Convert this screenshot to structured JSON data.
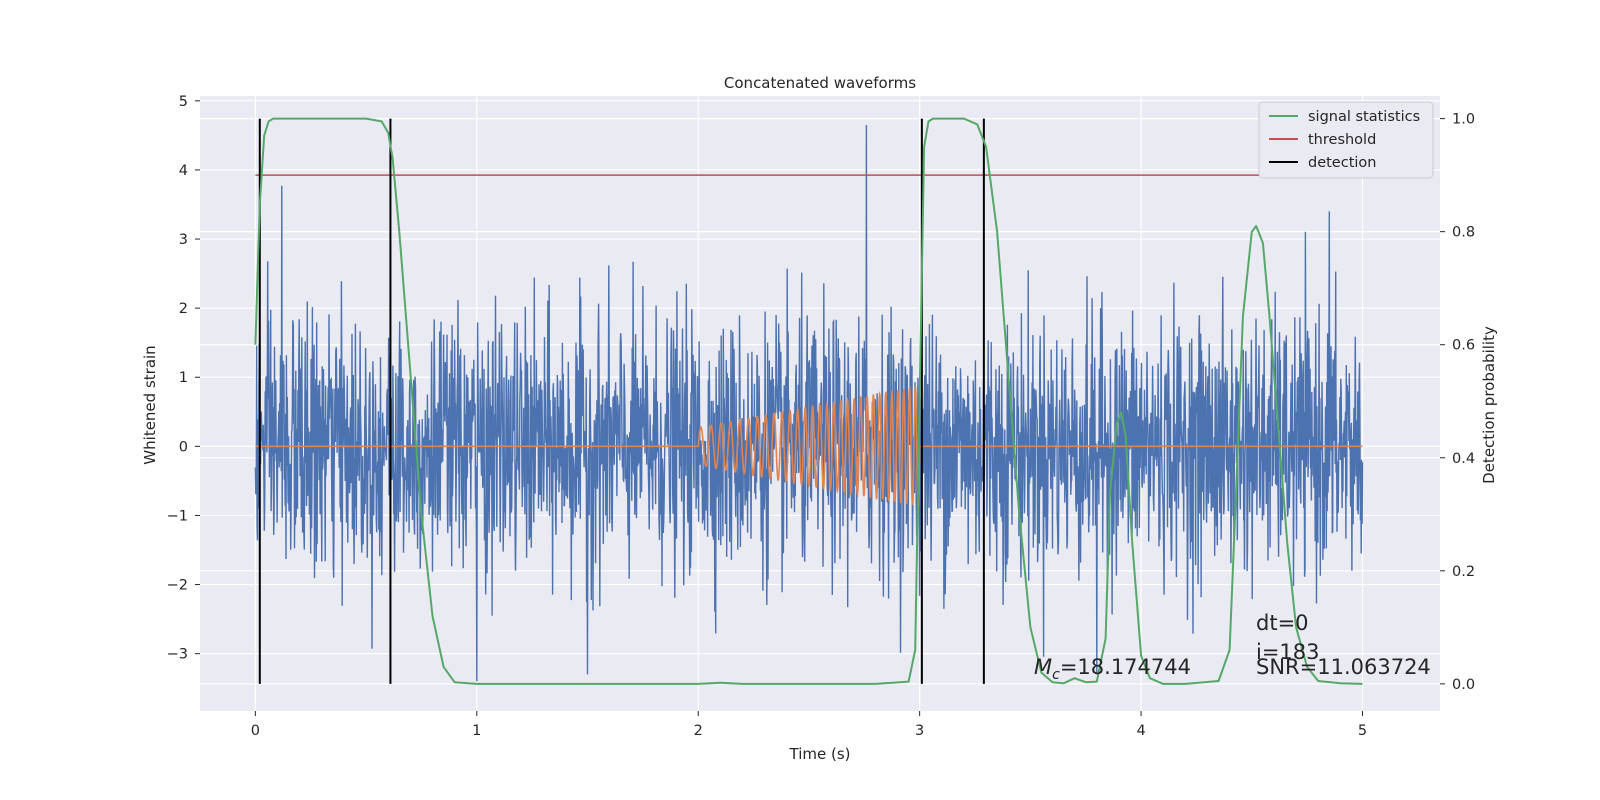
{
  "chart_data": {
    "type": "line",
    "title": "Concatenated waveforms",
    "xlabel": "Time (s)",
    "ylabel": "Whitened strain",
    "y2label": "Detection probability",
    "xlim": [
      -0.25,
      5.35
    ],
    "ylim": [
      -3.83,
      5.07
    ],
    "y2lim": [
      -0.048,
      1.04
    ],
    "xticks": [
      0,
      1,
      2,
      3,
      4,
      5
    ],
    "yticks": [
      -3,
      -2,
      -1,
      0,
      1,
      2,
      3,
      4,
      5
    ],
    "y2ticks": [
      0.0,
      0.2,
      0.4,
      0.6,
      0.8,
      1.0
    ],
    "ytick_labels": [
      "−3",
      "−2",
      "−1",
      "0",
      "1",
      "2",
      "3",
      "4",
      "5"
    ],
    "y2tick_labels": [
      "0.0",
      "0.2",
      "0.4",
      "0.6",
      "0.8",
      "1.0"
    ],
    "grid": true,
    "legend_position": "top-right",
    "legend": [
      {
        "label": "signal statistics",
        "color": "#55a868"
      },
      {
        "label": "threshold",
        "color": "#c44e52"
      },
      {
        "label": "detection",
        "color": "#000000"
      }
    ],
    "colors": {
      "strain": "#4c72b0",
      "template": "#dd8452",
      "signal_statistics": "#55a868",
      "threshold": "#c44e52",
      "detection": "#000000",
      "axes_bg": "#eaeaf2",
      "grid": "#ffffff"
    },
    "strain": {
      "t_range": [
        0,
        5
      ],
      "noise_amplitude": 2.3,
      "peaks": [
        [
          0.12,
          3.77
        ],
        [
          2.76,
          4.65
        ],
        [
          4.85,
          3.4
        ],
        [
          1.0,
          -3.4
        ],
        [
          1.5,
          -3.3
        ],
        [
          3.8,
          -3.3
        ]
      ]
    },
    "template": {
      "t_start": 2.0,
      "t_end": 3.0,
      "amp_start": 0.27,
      "amp_end": 0.87,
      "cycles": 30
    },
    "signal_statistics": {
      "t": [
        0.0,
        0.02,
        0.04,
        0.06,
        0.08,
        0.12,
        0.3,
        0.5,
        0.57,
        0.6,
        0.62,
        0.65,
        0.7,
        0.75,
        0.8,
        0.85,
        0.9,
        1.0,
        1.5,
        2.0,
        2.1,
        2.2,
        2.5,
        2.8,
        2.95,
        2.98,
        3.0,
        3.02,
        3.04,
        3.06,
        3.1,
        3.2,
        3.26,
        3.3,
        3.35,
        3.4,
        3.45,
        3.5,
        3.55,
        3.6,
        3.65,
        3.7,
        3.75,
        3.8,
        3.84,
        3.86,
        3.89,
        3.91,
        3.93,
        3.96,
        4.0,
        4.04,
        4.1,
        4.2,
        4.35,
        4.4,
        4.43,
        4.46,
        4.5,
        4.52,
        4.55,
        4.58,
        4.62,
        4.66,
        4.7,
        4.75,
        4.8,
        4.9,
        5.0
      ],
      "p": [
        0.6,
        0.85,
        0.97,
        0.995,
        1.0,
        1.0,
        1.0,
        1.0,
        0.995,
        0.975,
        0.93,
        0.8,
        0.55,
        0.3,
        0.12,
        0.03,
        0.003,
        0.0,
        0.0,
        0.0,
        0.002,
        0.0,
        0.0,
        0.0,
        0.004,
        0.06,
        0.5,
        0.95,
        0.995,
        1.0,
        1.0,
        1.0,
        0.99,
        0.95,
        0.8,
        0.55,
        0.3,
        0.1,
        0.02,
        0.003,
        0.001,
        0.01,
        0.003,
        0.004,
        0.08,
        0.34,
        0.46,
        0.48,
        0.44,
        0.25,
        0.05,
        0.01,
        0.0,
        0.0,
        0.005,
        0.06,
        0.35,
        0.65,
        0.8,
        0.81,
        0.78,
        0.65,
        0.45,
        0.25,
        0.1,
        0.03,
        0.005,
        0.001,
        0.0
      ]
    },
    "threshold": {
      "value": 0.9,
      "x": [
        0.0,
        5.1
      ]
    },
    "detections": [
      0.02,
      0.61,
      3.01,
      3.29
    ],
    "annotations": {
      "mc_label": "M",
      "mc_sub": "c",
      "mc_value": "=18.174744",
      "dt": "dt=0",
      "index": "i=183",
      "snr": "SNR=11.063724"
    }
  }
}
